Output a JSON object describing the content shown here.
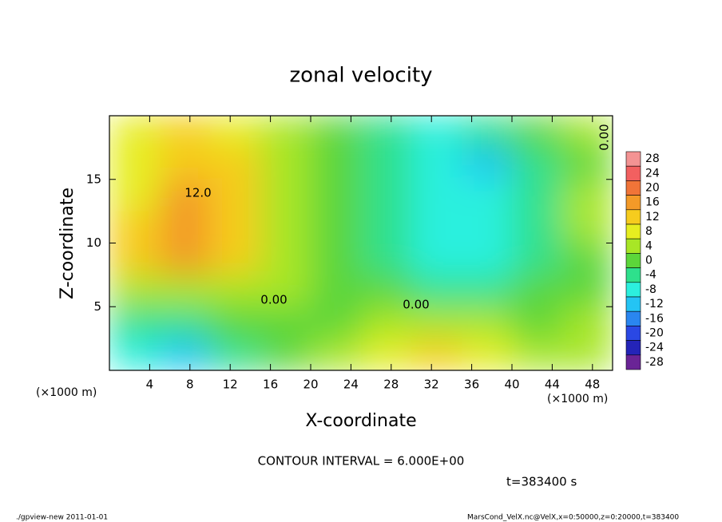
{
  "chart_data": {
    "type": "heatmap",
    "title": "zonal velocity",
    "x_label": "X-coordinate",
    "y_label": "Z-coordinate",
    "x_unit": "(×1000 m)",
    "x": [
      2.5,
      7.5,
      12.5,
      17.5,
      22.5,
      27.5,
      32.5,
      37.5,
      42.5,
      47.5
    ],
    "y": [
      18.75,
      16.25,
      13.75,
      11.25,
      8.75,
      6.25,
      3.75,
      1.25
    ],
    "z": [
      [
        6,
        12,
        8,
        4,
        0,
        -4,
        -8,
        -6,
        -2,
        2
      ],
      [
        6,
        12,
        10,
        4,
        0,
        -4,
        -10,
        -12,
        -6,
        0
      ],
      [
        8,
        14,
        10,
        4,
        0,
        -4,
        -8,
        -10,
        -6,
        2
      ],
      [
        12,
        16,
        12,
        4,
        0,
        -4,
        -8,
        -8,
        -4,
        2
      ],
      [
        10,
        14,
        10,
        4,
        0,
        -4,
        -8,
        -8,
        -4,
        0
      ],
      [
        4,
        4,
        3,
        2,
        0,
        -2,
        -4,
        -4,
        -2,
        0
      ],
      [
        -4,
        -4,
        -2,
        0,
        0,
        2,
        2,
        2,
        0,
        2
      ],
      [
        -10,
        -14,
        -6,
        -2,
        2,
        6,
        10,
        8,
        2,
        4
      ]
    ],
    "xlim": [
      0,
      50
    ],
    "ylim": [
      0,
      20
    ],
    "xticks": [
      4,
      8,
      12,
      16,
      20,
      24,
      28,
      32,
      36,
      40,
      44,
      48
    ],
    "yticks": [
      5,
      10,
      15
    ],
    "colorbar": {
      "ticks": [
        28,
        24,
        20,
        16,
        12,
        8,
        4,
        0,
        -4,
        -8,
        -12,
        -16,
        -20,
        -24,
        -28
      ],
      "colors": [
        "#f39393",
        "#f26060",
        "#f07438",
        "#f39a28",
        "#f6cc1e",
        "#e6ee20",
        "#a8e626",
        "#5cd63a",
        "#2ee08c",
        "#2cf0de",
        "#24c4f4",
        "#2a86f0",
        "#2a48e4",
        "#2424b8",
        "#6a2496"
      ]
    },
    "annotations": [
      "12.0",
      "0.00",
      "0.00",
      "0.00"
    ],
    "contour_interval": "CONTOUR INTERVAL = 6.000E+00",
    "time": "t=383400 s",
    "footer_left": "./gpview-new  2011-01-01",
    "footer_right": "MarsCond_VelX.nc@VelX,x=0:50000,z=0:20000,t=383400"
  }
}
